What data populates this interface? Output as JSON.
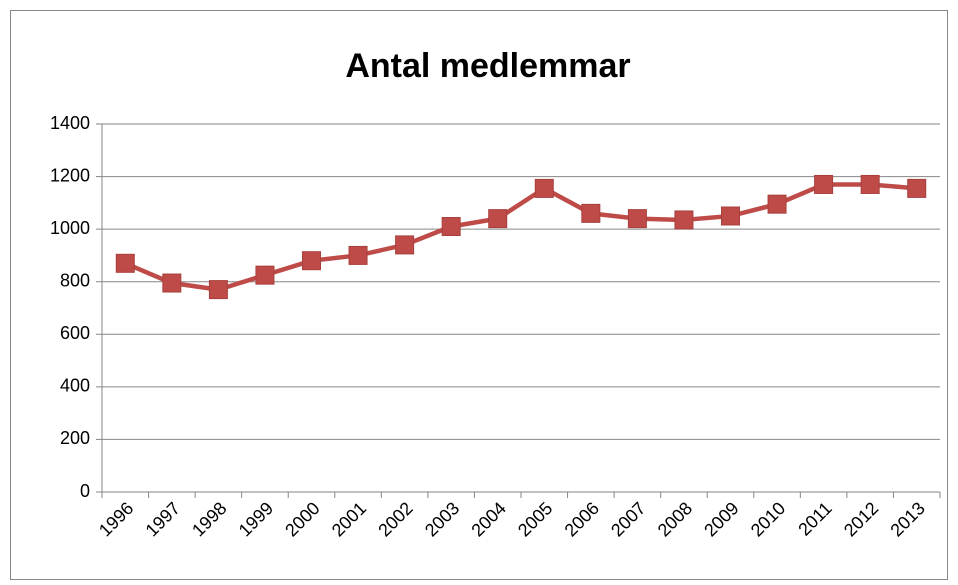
{
  "chart_data": {
    "type": "line",
    "title": "Antal medlemmar",
    "categories": [
      "1996",
      "1997",
      "1998",
      "1999",
      "2000",
      "2001",
      "2002",
      "2003",
      "2004",
      "2005",
      "2006",
      "2007",
      "2008",
      "2009",
      "2010",
      "2011",
      "2012",
      "2013"
    ],
    "series": [
      {
        "name": "Antal medlemmar",
        "color": "#be4b48",
        "values": [
          870,
          795,
          770,
          825,
          880,
          900,
          940,
          1010,
          1040,
          1155,
          1060,
          1040,
          1035,
          1050,
          1095,
          1170,
          1170,
          1155
        ]
      }
    ],
    "ylim": [
      0,
      1400
    ],
    "yticks": [
      0,
      200,
      400,
      600,
      800,
      1000,
      1200,
      1400
    ],
    "grid": true
  }
}
